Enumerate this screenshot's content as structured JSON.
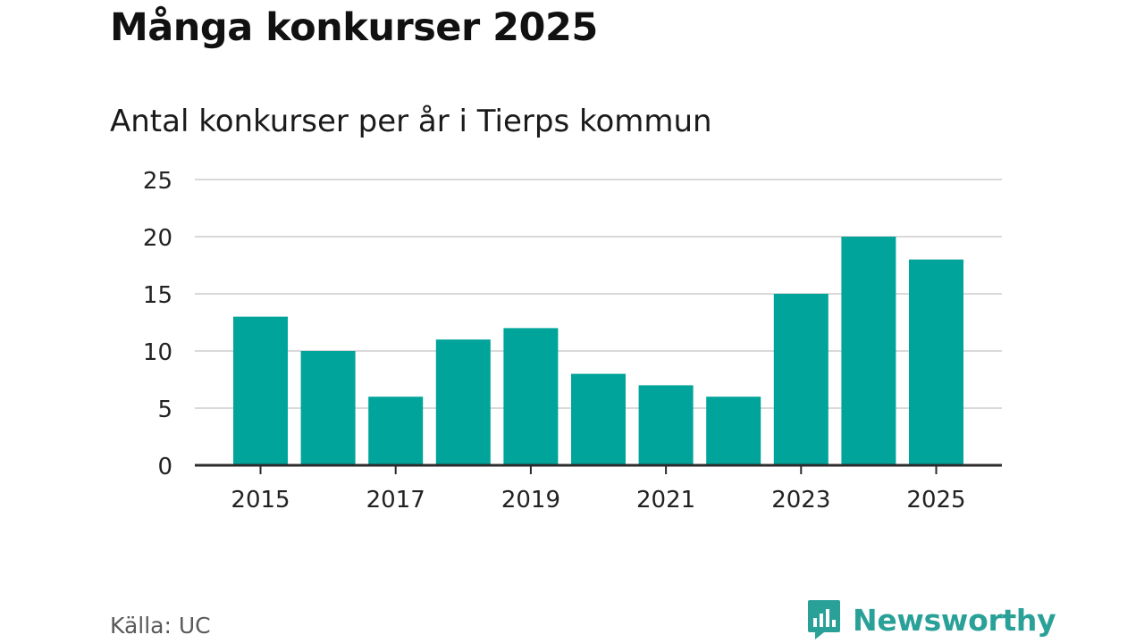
{
  "title": "Många konkurser 2025",
  "chart_data": {
    "type": "bar",
    "title": "Antal konkurser per år i Tierps kommun",
    "categories": [
      "2015",
      "2016",
      "2017",
      "2018",
      "2019",
      "2020",
      "2021",
      "2022",
      "2023",
      "2024",
      "2025"
    ],
    "values": [
      13,
      10,
      6,
      11,
      12,
      8,
      7,
      6,
      15,
      20,
      18
    ],
    "x_tick_labels": [
      "2015",
      "2017",
      "2019",
      "2021",
      "2023",
      "2025"
    ],
    "y_ticks": [
      0,
      5,
      10,
      15,
      20,
      25
    ],
    "ylim": [
      0,
      25
    ],
    "xlabel": "",
    "ylabel": "",
    "grid": true,
    "bar_color": "#00a49a"
  },
  "source": "Källa: UC",
  "brand": {
    "name": "Newsworthy",
    "color": "#2aa198",
    "logo_icon": "bar-chart-speech-bubble-icon"
  }
}
